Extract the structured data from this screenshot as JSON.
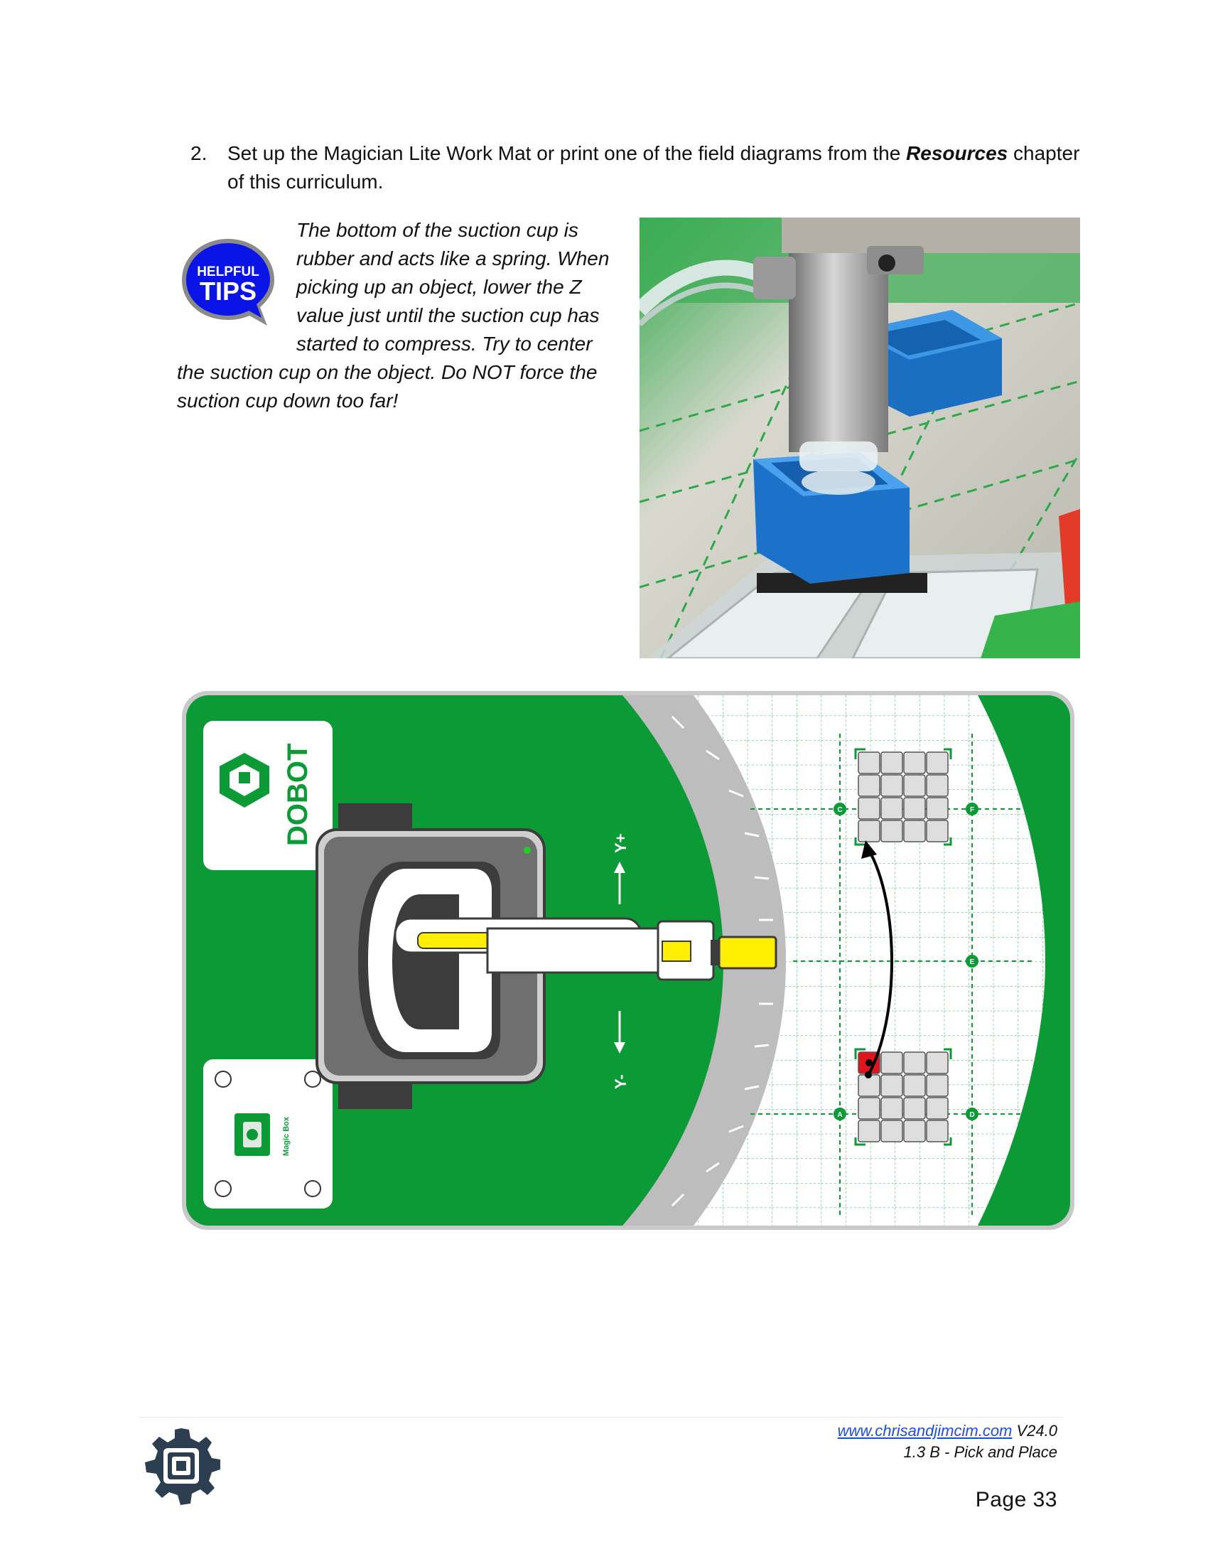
{
  "step": {
    "number": "2.",
    "text_before": "Set up the Magician Lite Work Mat or print one of the field diagrams from the ",
    "emphasis": "Resources",
    "text_after": " chapter of this curriculum."
  },
  "tips_badge": {
    "line1": "HELPFUL",
    "line2": "TIPS",
    "color": "#0a14e6",
    "ring_color": "#8a8a8a"
  },
  "tip": {
    "lines_indented": [
      "The bottom of the suction cup is",
      "rubber and acts like a spring. When",
      "picking up an object, lower the Z",
      "value just until the suction cup has",
      "started to compress.  Try to center"
    ],
    "lines_full": [
      "the suction cup on the object. Do NOT force the",
      "suction cup down too far!"
    ]
  },
  "mat": {
    "brand": "DOBOT",
    "magic_box_label": "Magic Box",
    "axis_pos": "Y+",
    "axis_neg": "Y-",
    "grid_markers": [
      "C",
      "F",
      "E",
      "A",
      "D"
    ],
    "colors": {
      "green": "#0b9a36",
      "gray": "#bcbcbc",
      "yellow": "#ffee00",
      "red": "#e2141b"
    }
  },
  "footer": {
    "url": "www.chrisandjimcim.com",
    "version": " V24.0",
    "section": "1.3 B - Pick and Place",
    "page_label": "Page 33"
  }
}
